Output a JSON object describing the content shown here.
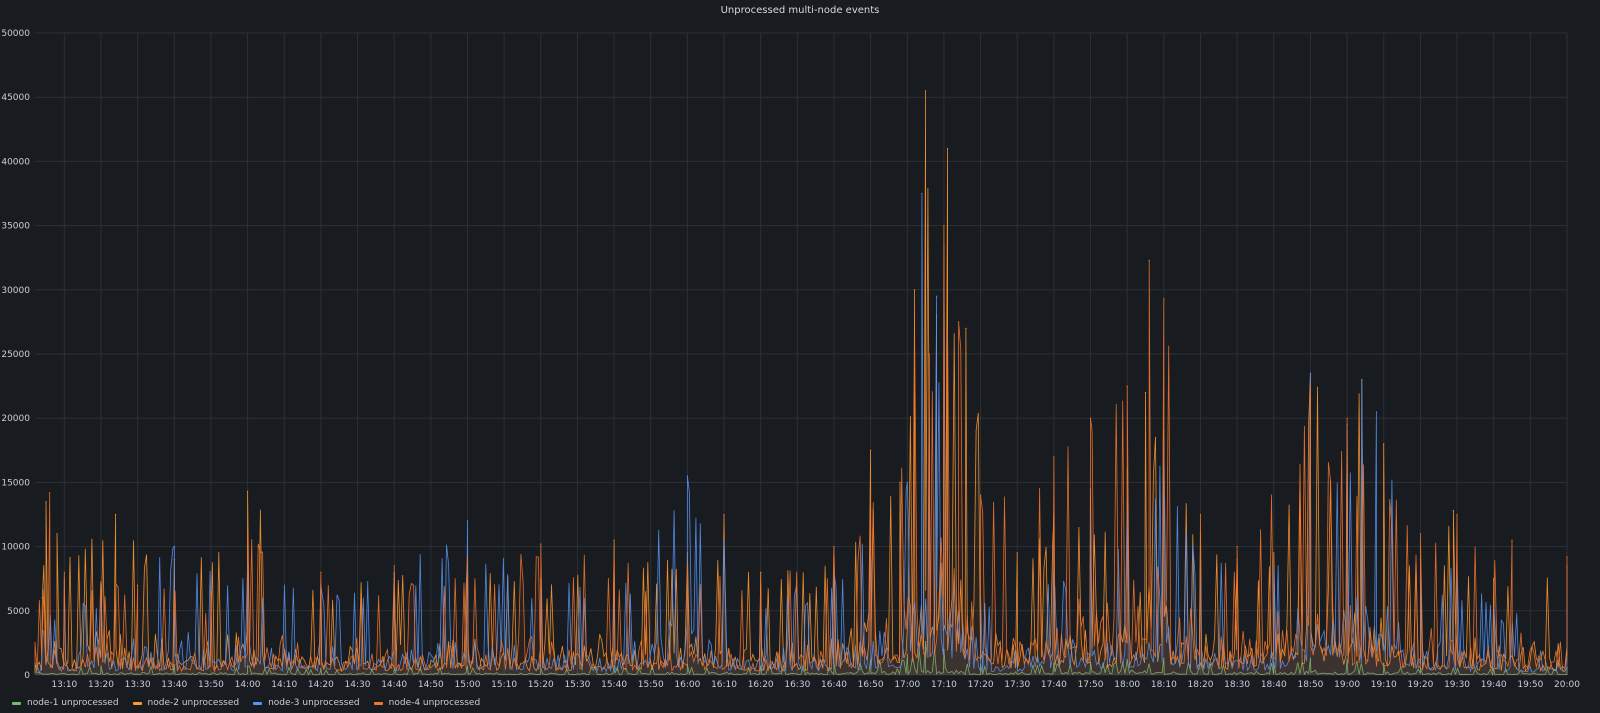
{
  "chart_data": {
    "type": "line",
    "title": "Unprocessed multi-node events",
    "xlabel": "",
    "ylabel": "",
    "x_start": "13:02",
    "x_end": "20:00",
    "ylim": [
      0,
      50000
    ],
    "yticks": [
      0,
      5000,
      10000,
      15000,
      20000,
      25000,
      30000,
      35000,
      40000,
      45000,
      50000
    ],
    "xticks": [
      "13:10",
      "13:20",
      "13:30",
      "13:40",
      "13:50",
      "14:00",
      "14:10",
      "14:20",
      "14:30",
      "14:40",
      "14:50",
      "15:00",
      "15:10",
      "15:20",
      "15:30",
      "15:40",
      "15:50",
      "16:00",
      "16:10",
      "16:20",
      "16:30",
      "16:40",
      "16:50",
      "17:00",
      "17:10",
      "17:20",
      "17:30",
      "17:40",
      "17:50",
      "18:00",
      "18:10",
      "18:20",
      "18:30",
      "18:40",
      "18:50",
      "19:00",
      "19:10",
      "19:20",
      "19:30",
      "19:40",
      "19:50",
      "20:00"
    ],
    "grid": true,
    "legend_position": "bottom-left",
    "series": [
      {
        "name": "node-1 unprocessed",
        "color": "#73bf69",
        "x": [
          "13:02",
          "13:20",
          "13:40",
          "14:00",
          "14:20",
          "14:40",
          "15:00",
          "15:20",
          "15:40",
          "16:00",
          "16:20",
          "16:40",
          "16:50",
          "17:00",
          "17:05",
          "17:10",
          "17:20",
          "17:40",
          "17:50",
          "18:00",
          "18:10",
          "18:20",
          "18:40",
          "18:50",
          "19:00",
          "19:10",
          "19:20",
          "19:40",
          "20:00"
        ],
        "values": [
          900,
          700,
          800,
          700,
          500,
          600,
          700,
          500,
          700,
          800,
          700,
          900,
          1200,
          1600,
          2600,
          2000,
          800,
          900,
          1000,
          1200,
          1300,
          900,
          1000,
          1300,
          1200,
          900,
          600,
          500,
          600
        ]
      },
      {
        "name": "node-2 unprocessed",
        "color": "#ff9830",
        "x": [
          "13:04",
          "13:05",
          "13:08",
          "13:24",
          "13:40",
          "14:00",
          "14:20",
          "14:40",
          "15:00",
          "15:20",
          "15:40",
          "16:00",
          "16:10",
          "16:20",
          "16:40",
          "16:50",
          "16:58",
          "17:02",
          "17:05",
          "17:08",
          "17:11",
          "17:16",
          "17:30",
          "17:40",
          "17:50",
          "18:00",
          "18:05",
          "18:10",
          "18:20",
          "18:30",
          "18:40",
          "18:50",
          "19:00",
          "19:04",
          "19:10",
          "19:20",
          "19:29",
          "19:40",
          "20:00"
        ],
        "values": [
          6000,
          13500,
          11000,
          12500,
          9000,
          14300,
          7000,
          8000,
          9200,
          7500,
          10500,
          9500,
          12500,
          8000,
          9000,
          17500,
          15000,
          30000,
          45500,
          28000,
          41000,
          27000,
          9500,
          12500,
          14500,
          16000,
          22000,
          19000,
          11000,
          9000,
          9500,
          23500,
          19000,
          23000,
          18000,
          7500,
          12800,
          7500,
          8500
        ]
      },
      {
        "name": "node-3 unprocessed",
        "color": "#5794f2",
        "x": [
          "13:04",
          "13:10",
          "13:20",
          "13:40",
          "14:00",
          "14:20",
          "14:40",
          "15:00",
          "15:20",
          "15:40",
          "16:00",
          "16:10",
          "16:20",
          "16:40",
          "16:50",
          "17:00",
          "17:04",
          "17:06",
          "17:08",
          "17:10",
          "17:20",
          "17:40",
          "17:50",
          "18:00",
          "18:10",
          "18:20",
          "18:40",
          "18:50",
          "19:00",
          "19:04",
          "19:08",
          "19:20",
          "19:30",
          "19:40",
          "20:00"
        ],
        "values": [
          3500,
          7500,
          7000,
          10000,
          9000,
          7000,
          8000,
          12000,
          7500,
          7000,
          15500,
          10500,
          6000,
          8000,
          11000,
          15000,
          37500,
          20000,
          29500,
          33500,
          6000,
          8000,
          12500,
          13500,
          18500,
          9500,
          8500,
          23500,
          19500,
          23000,
          20500,
          9000,
          8500,
          5500,
          6000
        ]
      },
      {
        "name": "node-4 unprocessed",
        "color": "#f2762e",
        "x": [
          "13:02",
          "13:06",
          "13:10",
          "13:30",
          "13:50",
          "14:00",
          "14:20",
          "14:40",
          "15:00",
          "15:20",
          "15:40",
          "16:00",
          "16:20",
          "16:40",
          "16:50",
          "17:02",
          "17:06",
          "17:10",
          "17:14",
          "17:20",
          "17:40",
          "17:50",
          "18:00",
          "18:06",
          "18:10",
          "18:20",
          "18:30",
          "18:50",
          "19:00",
          "19:20",
          "19:30",
          "19:45",
          "20:00"
        ],
        "values": [
          2500,
          14200,
          8000,
          7000,
          6500,
          11000,
          8000,
          8500,
          9200,
          10200,
          9500,
          8500,
          7000,
          10000,
          14000,
          26000,
          25000,
          35000,
          27500,
          14000,
          17000,
          20000,
          22500,
          32300,
          29300,
          12500,
          10000,
          22500,
          20000,
          11000,
          12500,
          10500,
          9200
        ]
      }
    ]
  }
}
